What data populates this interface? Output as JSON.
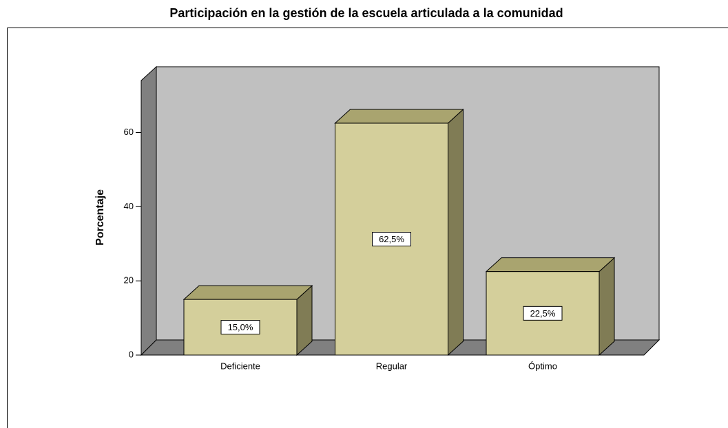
{
  "chart_data": {
    "type": "bar3d",
    "title": "Participación en la gestión de la escuela articulada a la comunidad",
    "ylabel": "Porcentaje",
    "categories": [
      "Deficiente",
      "Regular",
      "Óptimo"
    ],
    "values": [
      15.0,
      62.5,
      22.5
    ],
    "value_labels": [
      "15,0%",
      "62,5%",
      "22,5%"
    ],
    "color": "#d4cf9b",
    "ylim": [
      0,
      74
    ],
    "yticks": [
      0,
      20,
      40,
      60
    ]
  }
}
